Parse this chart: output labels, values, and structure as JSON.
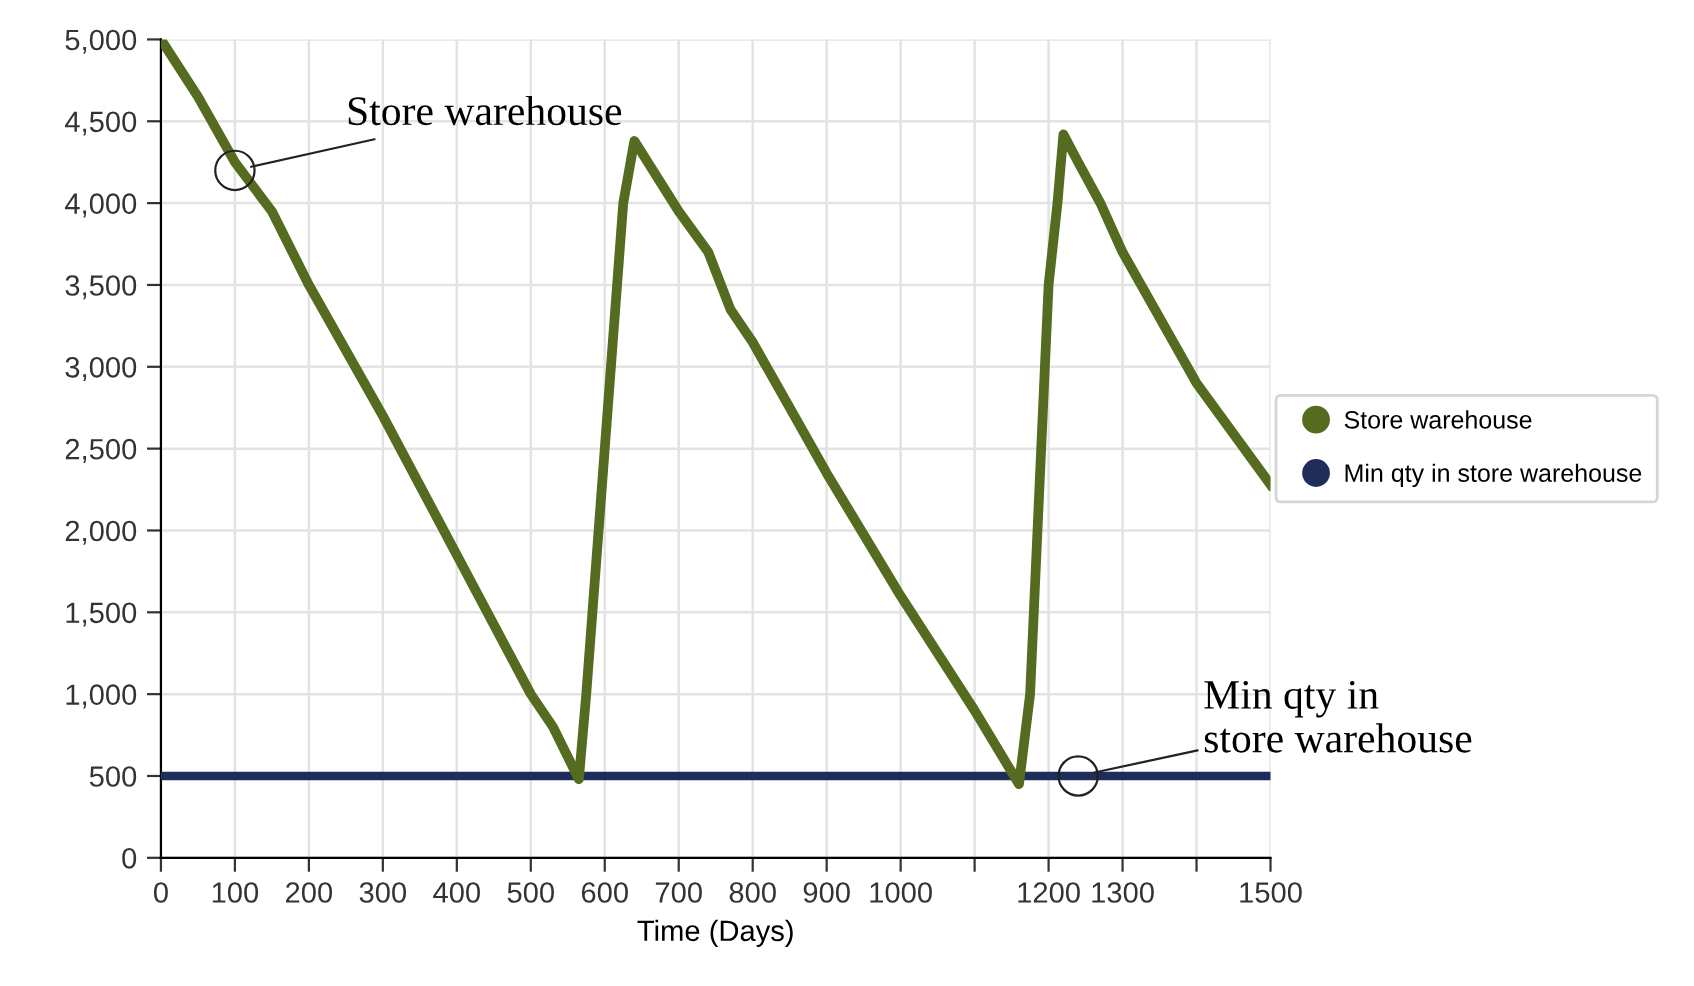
{
  "chart_data": {
    "type": "line",
    "xlabel": "Time (Days)",
    "xlim": [
      0,
      1500
    ],
    "ylim": [
      0,
      5000
    ],
    "xticks": [
      0,
      100,
      200,
      300,
      400,
      500,
      600,
      700,
      800,
      900,
      1000,
      {
        "value": 1100,
        "label": null
      },
      1200,
      1300,
      {
        "value": 1400,
        "label": null
      },
      1500
    ],
    "yticks": [
      {
        "value": 0,
        "label": "0"
      },
      {
        "value": 500,
        "label": "500"
      },
      {
        "value": 1000,
        "label": "1,000"
      },
      {
        "value": 1500,
        "label": "1,500"
      },
      {
        "value": 2000,
        "label": "2,000"
      },
      {
        "value": 2500,
        "label": "2,500"
      },
      {
        "value": 3000,
        "label": "3,000"
      },
      {
        "value": 3500,
        "label": "3,500"
      },
      {
        "value": 4000,
        "label": "4,000"
      },
      {
        "value": 4500,
        "label": "4,500"
      },
      {
        "value": 5000,
        "label": "5,000"
      }
    ],
    "series": [
      {
        "name": "Store warehouse",
        "color": "#556b1f",
        "x": [
          0,
          50,
          100,
          150,
          200,
          300,
          400,
          500,
          530,
          565,
          575,
          600,
          625,
          640,
          700,
          740,
          770,
          800,
          900,
          1000,
          1100,
          1160,
          1175,
          1200,
          1212,
          1220,
          1240,
          1270,
          1300,
          1400,
          1500
        ],
        "values": [
          5000,
          4650,
          4250,
          3950,
          3500,
          2700,
          1850,
          1000,
          800,
          480,
          1000,
          2500,
          4000,
          4380,
          3950,
          3700,
          3350,
          3150,
          2350,
          1600,
          900,
          450,
          1000,
          3500,
          4000,
          4420,
          4250,
          4000,
          3700,
          2900,
          2280
        ]
      },
      {
        "name": "Min qty in store warehouse",
        "color": "#1f2d5a",
        "x": [
          0,
          1500
        ],
        "values": [
          500,
          500
        ]
      }
    ],
    "annotations": [
      {
        "text": "Store warehouse",
        "x": 100,
        "y": 4200
      },
      {
        "text": "Min qty in\nstore warehouse",
        "x": 1240,
        "y": 500
      }
    ],
    "grid": true,
    "legend": "right",
    "marker": "none",
    "line_style": "solid"
  }
}
